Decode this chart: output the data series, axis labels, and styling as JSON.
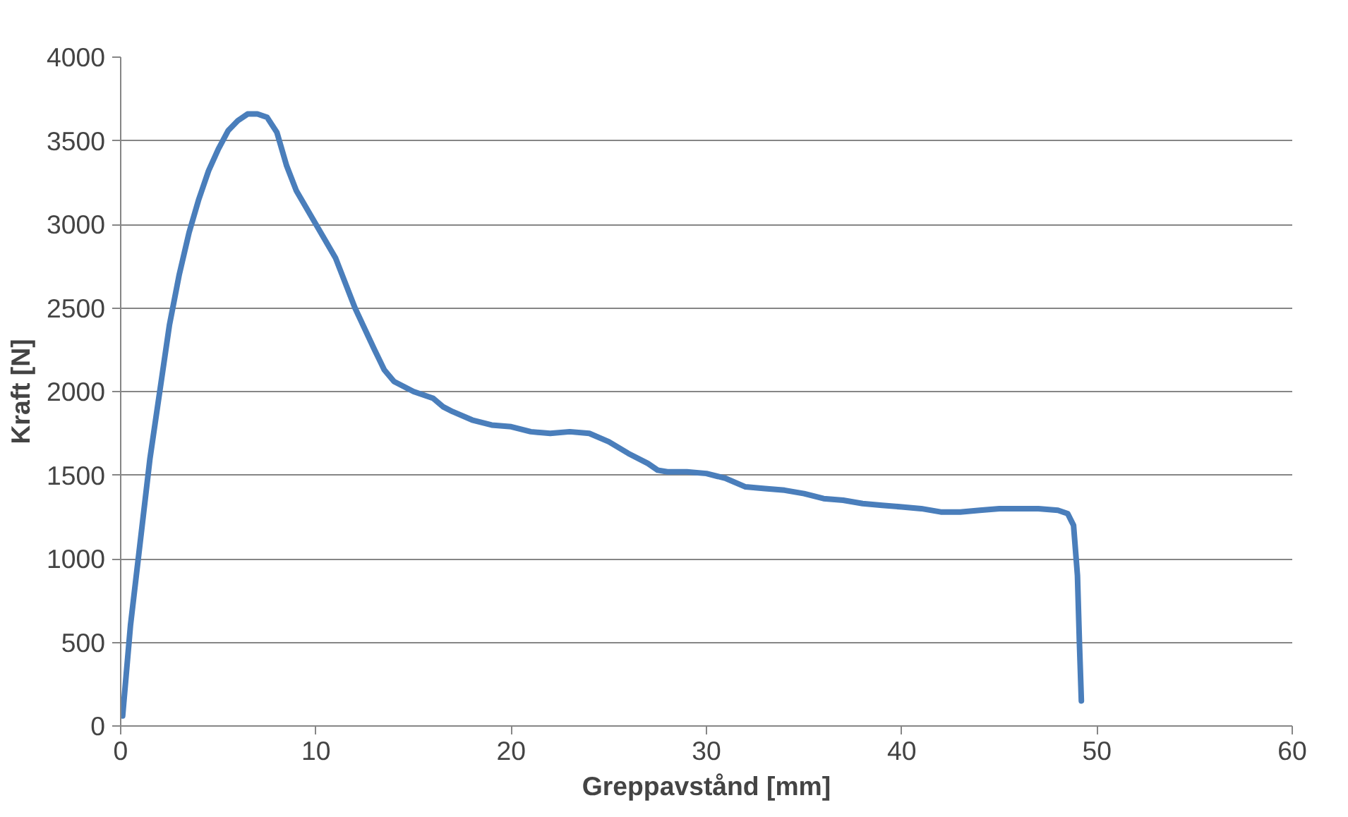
{
  "chart_data": {
    "type": "line",
    "xlabel": "Greppavstånd [mm]",
    "ylabel": "Kraft [N]",
    "xlim": [
      0,
      60
    ],
    "xticks": [
      0,
      10,
      20,
      30,
      40,
      50,
      60
    ],
    "ylim": [
      0,
      4000
    ],
    "yticks": [
      0,
      500,
      1000,
      1500,
      2000,
      2500,
      3000,
      3500,
      4000
    ],
    "grid": "y",
    "marker": "none",
    "line_style": "solid",
    "series": [
      {
        "color": "#4a7ebb",
        "x": [
          0.1,
          0.5,
          1,
          1.5,
          2,
          2.5,
          3,
          3.5,
          4,
          4.5,
          5,
          5.5,
          6,
          6.5,
          7,
          7.5,
          8,
          8.5,
          9,
          10,
          11,
          12,
          13,
          13.5,
          14,
          15,
          16,
          16.5,
          17,
          18,
          19,
          20,
          21,
          22,
          23,
          24,
          25,
          26,
          27,
          27.5,
          28,
          29,
          30,
          31,
          32,
          33,
          34,
          35,
          36,
          37,
          38,
          39,
          40,
          41,
          42,
          43,
          44,
          45,
          46,
          47,
          48,
          48.5,
          48.8,
          49,
          49.1,
          49.2
        ],
        "values": [
          60,
          600,
          1100,
          1600,
          2000,
          2400,
          2700,
          2950,
          3150,
          3320,
          3450,
          3560,
          3620,
          3660,
          3660,
          3640,
          3550,
          3350,
          3200,
          3000,
          2800,
          2500,
          2250,
          2130,
          2060,
          2000,
          1960,
          1910,
          1880,
          1830,
          1800,
          1790,
          1760,
          1750,
          1760,
          1750,
          1700,
          1630,
          1570,
          1530,
          1520,
          1520,
          1510,
          1480,
          1430,
          1420,
          1410,
          1390,
          1360,
          1350,
          1330,
          1320,
          1310,
          1300,
          1280,
          1280,
          1290,
          1300,
          1300,
          1300,
          1290,
          1270,
          1200,
          900,
          500,
          150
        ]
      }
    ]
  }
}
